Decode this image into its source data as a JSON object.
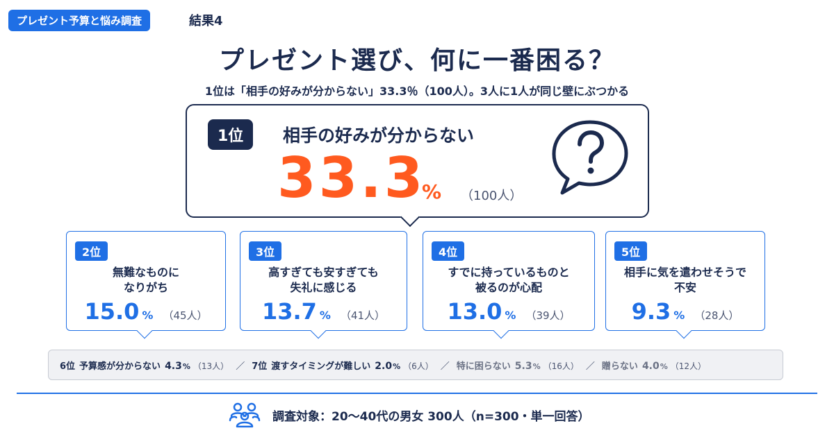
{
  "header": {
    "tag": "プレゼント予算と悩み調査",
    "result_label": "結果4"
  },
  "title": "プレゼント選び、何に一番困る？",
  "subtitle": "1位は「相手の好みが分からない」33.3％（100人）。3人に1人が同じ壁にぶつかる",
  "top": {
    "rank": "1位",
    "label": "相手の好みが分からない",
    "value": "33.3",
    "pct": "%",
    "count": "（100人）",
    "icon": "question-speech-bubble-icon"
  },
  "ranks": [
    {
      "rank": "2位",
      "label": "無難なものに\nなりがち",
      "value": "15.0",
      "pct": "%",
      "count": "（45人）"
    },
    {
      "rank": "3位",
      "label": "高すぎても安すぎても\n失礼に感じる",
      "value": "13.7",
      "pct": "%",
      "count": "（41人）"
    },
    {
      "rank": "4位",
      "label": "すでに持っているものと\n被るのが心配",
      "value": "13.0",
      "pct": "%",
      "count": "（39人）"
    },
    {
      "rank": "5位",
      "label": "相手に気を遣わせそうで\n不安",
      "value": "9.3",
      "pct": "%",
      "count": "（28人）"
    }
  ],
  "others": [
    {
      "rank": "6位",
      "label": "予算感が分からない",
      "value": "4.3",
      "pct": "%",
      "count": "（13人）"
    },
    {
      "rank": "7位",
      "label": "渡すタイミングが難しい",
      "value": "2.0",
      "pct": "%",
      "count": "（6人）"
    },
    {
      "rank": "",
      "label": "特に困らない",
      "value": "5.3",
      "pct": "%",
      "count": "（16人）"
    },
    {
      "rank": "",
      "label": "贈らない",
      "value": "4.0",
      "pct": "%",
      "count": "（12人）"
    }
  ],
  "separator": "／",
  "footer": {
    "icon": "people-group-icon",
    "text": "調査対象：20～40代の男女 300人（n=300・単一回答）"
  },
  "colors": {
    "navy": "#1b2a4e",
    "blue": "#1f6fe5",
    "orange": "#ff5a1f"
  }
}
